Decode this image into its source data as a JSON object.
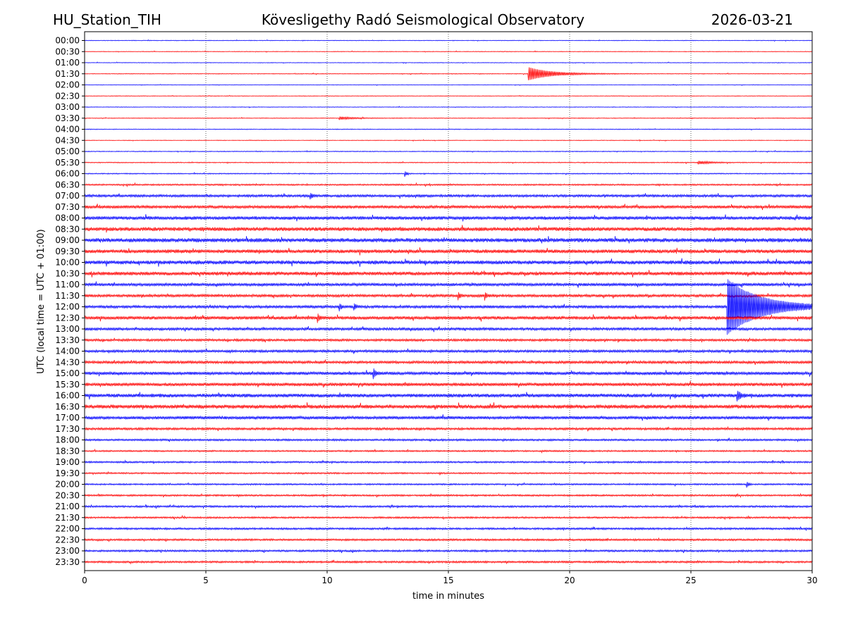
{
  "header": {
    "station": "HU_Station_TIH",
    "observatory": "Kövesligethy Radó Seismological Observatory",
    "date": "2026-03-21"
  },
  "chart_data": {
    "type": "line",
    "subtype": "helicorder",
    "xlabel": "time in minutes",
    "ylabel": "UTC (local time = UTC + 01:00)",
    "xlim": [
      0,
      30
    ],
    "x_ticks": [
      "0",
      "5",
      "10",
      "15",
      "20",
      "25",
      "30"
    ],
    "x_tick_values": [
      0,
      5,
      10,
      15,
      20,
      25,
      30
    ],
    "grid": "vertical dotted at each x tick",
    "colors": {
      "even_rows": "#0000ff",
      "odd_rows": "#ff0000"
    },
    "rows": [
      {
        "label": "00:00",
        "noise": 0.35
      },
      {
        "label": "00:30",
        "noise": 0.35
      },
      {
        "label": "01:00",
        "noise": 0.35
      },
      {
        "label": "01:30",
        "noise": 0.4
      },
      {
        "label": "02:00",
        "noise": 0.3
      },
      {
        "label": "02:30",
        "noise": 0.35
      },
      {
        "label": "03:00",
        "noise": 0.35
      },
      {
        "label": "03:30",
        "noise": 0.4
      },
      {
        "label": "04:00",
        "noise": 0.4
      },
      {
        "label": "04:30",
        "noise": 0.35
      },
      {
        "label": "05:00",
        "noise": 0.45
      },
      {
        "label": "05:30",
        "noise": 0.5
      },
      {
        "label": "06:00",
        "noise": 0.55
      },
      {
        "label": "06:30",
        "noise": 0.8
      },
      {
        "label": "07:00",
        "noise": 1.3
      },
      {
        "label": "07:30",
        "noise": 1.5
      },
      {
        "label": "08:00",
        "noise": 1.8
      },
      {
        "label": "08:30",
        "noise": 2.0
      },
      {
        "label": "09:00",
        "noise": 2.1
      },
      {
        "label": "09:30",
        "noise": 1.9
      },
      {
        "label": "10:00",
        "noise": 2.0
      },
      {
        "label": "10:30",
        "noise": 1.9
      },
      {
        "label": "11:00",
        "noise": 1.5
      },
      {
        "label": "11:30",
        "noise": 1.4
      },
      {
        "label": "12:00",
        "noise": 1.4
      },
      {
        "label": "12:30",
        "noise": 1.7
      },
      {
        "label": "13:00",
        "noise": 1.4
      },
      {
        "label": "13:30",
        "noise": 1.2
      },
      {
        "label": "14:00",
        "noise": 1.3
      },
      {
        "label": "14:30",
        "noise": 1.4
      },
      {
        "label": "15:00",
        "noise": 1.6
      },
      {
        "label": "15:30",
        "noise": 1.7
      },
      {
        "label": "16:00",
        "noise": 1.9
      },
      {
        "label": "16:30",
        "noise": 2.0
      },
      {
        "label": "17:00",
        "noise": 1.6
      },
      {
        "label": "17:30",
        "noise": 1.2
      },
      {
        "label": "18:00",
        "noise": 1.0
      },
      {
        "label": "18:30",
        "noise": 0.8
      },
      {
        "label": "19:00",
        "noise": 0.9
      },
      {
        "label": "19:30",
        "noise": 0.8
      },
      {
        "label": "20:00",
        "noise": 0.8
      },
      {
        "label": "20:30",
        "noise": 0.9
      },
      {
        "label": "21:00",
        "noise": 1.0
      },
      {
        "label": "21:30",
        "noise": 0.9
      },
      {
        "label": "22:00",
        "noise": 1.0
      },
      {
        "label": "22:30",
        "noise": 1.0
      },
      {
        "label": "23:00",
        "noise": 1.0
      },
      {
        "label": "23:30",
        "noise": 1.0
      }
    ],
    "events": [
      {
        "row": "01:30",
        "start_min": 18.3,
        "amplitude": 9,
        "decay_min": 0.9,
        "duration_min": 4.5
      },
      {
        "row": "12:00",
        "start_min": 26.5,
        "amplitude": 38,
        "decay_min": 1.3,
        "duration_min": 3.5
      },
      {
        "row": "12:30",
        "start_min": 9.6,
        "amplitude": 6,
        "decay_min": 0.08,
        "duration_min": 0.3
      },
      {
        "row": "12:00",
        "start_min": 10.5,
        "amplitude": 5,
        "decay_min": 0.08,
        "duration_min": 0.3
      },
      {
        "row": "12:00",
        "start_min": 11.1,
        "amplitude": 4,
        "decay_min": 0.1,
        "duration_min": 0.3
      },
      {
        "row": "11:30",
        "start_min": 15.4,
        "amplitude": 5,
        "decay_min": 0.08,
        "duration_min": 0.3
      },
      {
        "row": "11:30",
        "start_min": 16.5,
        "amplitude": 5,
        "decay_min": 0.08,
        "duration_min": 0.3
      },
      {
        "row": "15:00",
        "start_min": 11.9,
        "amplitude": 7,
        "decay_min": 0.08,
        "duration_min": 0.3
      },
      {
        "row": "06:00",
        "start_min": 13.2,
        "amplitude": 4,
        "decay_min": 0.08,
        "duration_min": 0.25
      },
      {
        "row": "07:00",
        "start_min": 9.3,
        "amplitude": 4,
        "decay_min": 0.1,
        "duration_min": 0.3
      },
      {
        "row": "16:00",
        "start_min": 26.9,
        "amplitude": 6,
        "decay_min": 0.15,
        "duration_min": 0.4
      },
      {
        "row": "20:00",
        "start_min": 27.3,
        "amplitude": 4,
        "decay_min": 0.08,
        "duration_min": 0.2
      },
      {
        "row": "03:30",
        "start_min": 10.5,
        "amplitude": 2,
        "decay_min": 0.5,
        "duration_min": 2.0
      },
      {
        "row": "05:30",
        "start_min": 25.3,
        "amplitude": 2,
        "decay_min": 0.5,
        "duration_min": 1.5
      }
    ]
  }
}
